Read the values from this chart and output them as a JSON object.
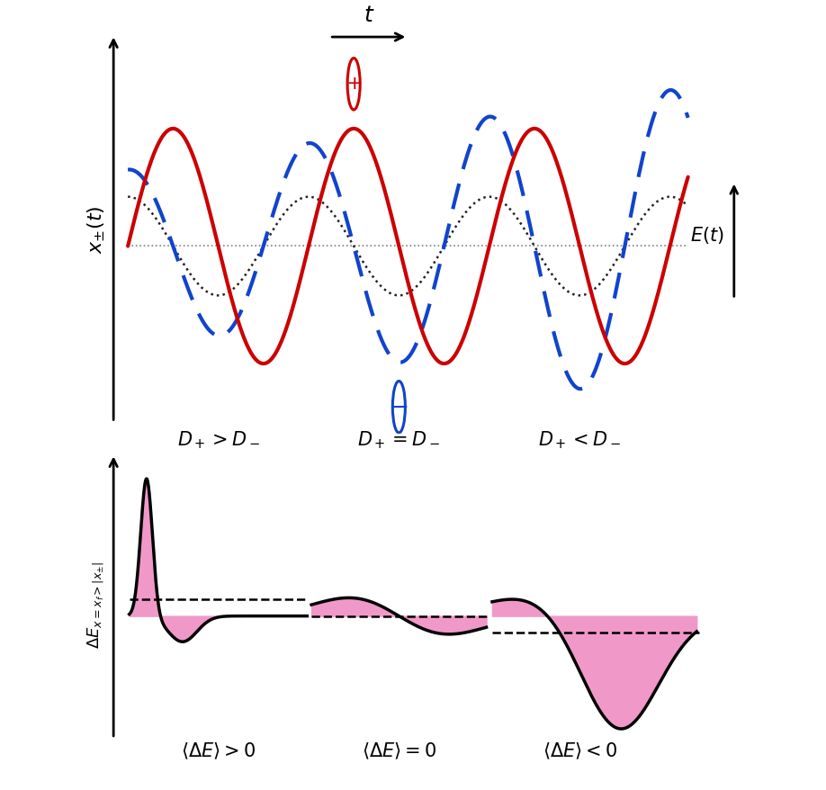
{
  "top_panel": {
    "red_color": "#cc0000",
    "blue_color": "#1144cc",
    "dotted_color": "#222222",
    "ylabel": "$x_{\\pm}(t)$",
    "label1": "$D_+>D_-$",
    "label2": "$D_+=D_-$",
    "label3": "$D_+<D_-$",
    "Et_label": "$E(t)$",
    "t_label": "$t$"
  },
  "bottom_panel": {
    "ylabel": "$\\Delta E_{x=x_f>|x_{\\pm}|}$",
    "label1": "$\\langle\\Delta E\\rangle>0$",
    "label2": "$\\langle\\Delta E\\rangle=0$",
    "label3": "$\\langle\\Delta E\\rangle<0$",
    "fill_color": "#f099c8",
    "line_color": "#000000"
  }
}
